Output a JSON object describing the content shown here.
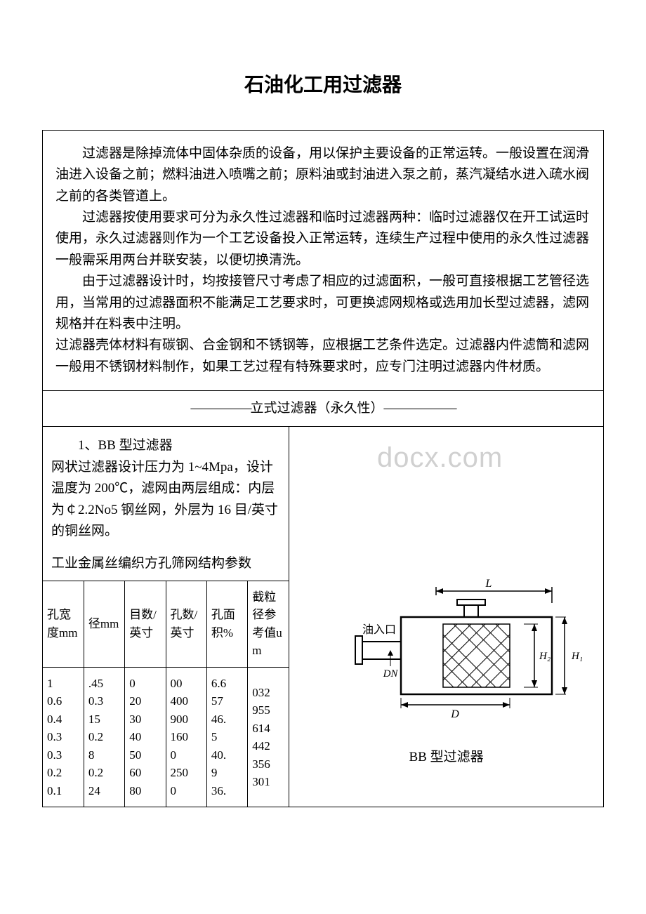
{
  "title": "石油化工用过滤器",
  "intro": {
    "p1": "过滤器是除掉流体中固体杂质的设备，用以保护主要设备的正常运转。一般设置在润滑油进入设备之前；燃料油进入喷嘴之前；原料油或封油进入泵之前，蒸汽凝结水进入疏水阀之前的各类管道上。",
    "p2": "过滤器按使用要求可分为永久性过滤器和临时过滤器两种：临时过滤器仅在开工试运时使用，永久过滤器则作为一个工艺设备投入正常运转，连续生产过程中使用的永久性过滤器一般需采用两台并联安装，以便切换清洗。",
    "p3": "由于过滤器设计时，均按接管尺寸考虑了相应的过滤面积，一般可直接根据工艺管径选用，当常用的过滤器面积不能满足工艺要求时，可更换滤网规格或选用加长型过滤器，滤网规格并在料表中注明。",
    "p4": "过滤器壳体材料有碳钢、合金钢和不锈钢等，应根据工艺条件选定。过滤器内件滤筒和滤网一般用不锈钢材料制作，如果工艺过程有特殊要求时，应专门注明过滤器内件材质。"
  },
  "section_header": {
    "dash_left": "—————",
    "label": "立式过滤器（永久性）",
    "dash_right": "——————"
  },
  "bb": {
    "heading": "1、BB 型过滤器",
    "desc": "网状过滤器设计压力为 1~4Mpa，设计温度为 200℃，滤网由两层组成：内层为￠2.2No5 钢丝网，外层为 16 目/英寸的铜丝网。",
    "param_title": "工业金属丝编织方孔筛网结构参数"
  },
  "watermark": "docx.com",
  "param_table": {
    "headers": [
      "孔宽度mm",
      "径mm",
      "目数/英寸",
      "孔数/英寸",
      "孔面积%",
      "截粒径参考值um"
    ],
    "col0": "1\n0.6\n0.4\n0.3\n0.3\n0.2\n0.1",
    "col1": ".45\n0.3\n15\n0.2\n8\n0.2\n24",
    "col2": "0\n20\n30\n40\n50\n60\n80",
    "col3": "00\n400\n900\n160\n0\n250\n0",
    "col4": "6.6\n57\n46.\n5\n40.\n9\n36.",
    "col5": "032\n955\n614\n442\n356\n301"
  },
  "diagram": {
    "caption": "BB 型过滤器",
    "labels": {
      "L": "L",
      "inlet": "油入口",
      "DN": "DN",
      "D": "D",
      "H1": "H₁",
      "H2": "H₂"
    },
    "colors": {
      "stroke": "#000000",
      "bg": "#ffffff"
    }
  }
}
